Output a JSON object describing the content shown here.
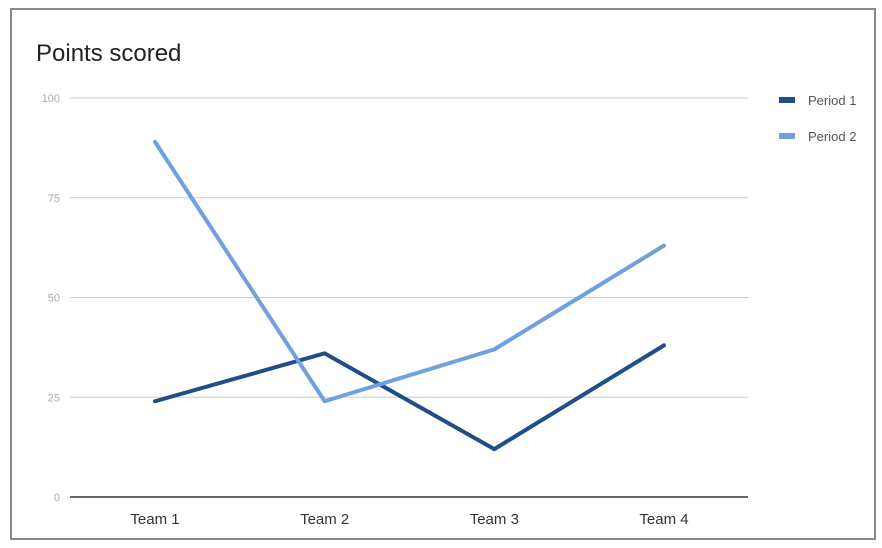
{
  "chart_data": {
    "type": "line",
    "title": "Points scored",
    "categories": [
      "Team 1",
      "Team 2",
      "Team 3",
      "Team 4"
    ],
    "series": [
      {
        "name": "Period 1",
        "values": [
          24,
          36,
          12,
          38
        ],
        "color": "#1f4e89"
      },
      {
        "name": "Period 2",
        "values": [
          89,
          24,
          37,
          63
        ],
        "color": "#6fa0e0"
      }
    ],
    "ylim": [
      0,
      100
    ],
    "yticks": [
      "0",
      "25",
      "50",
      "75",
      "100"
    ],
    "grid": true,
    "legend": "right"
  }
}
